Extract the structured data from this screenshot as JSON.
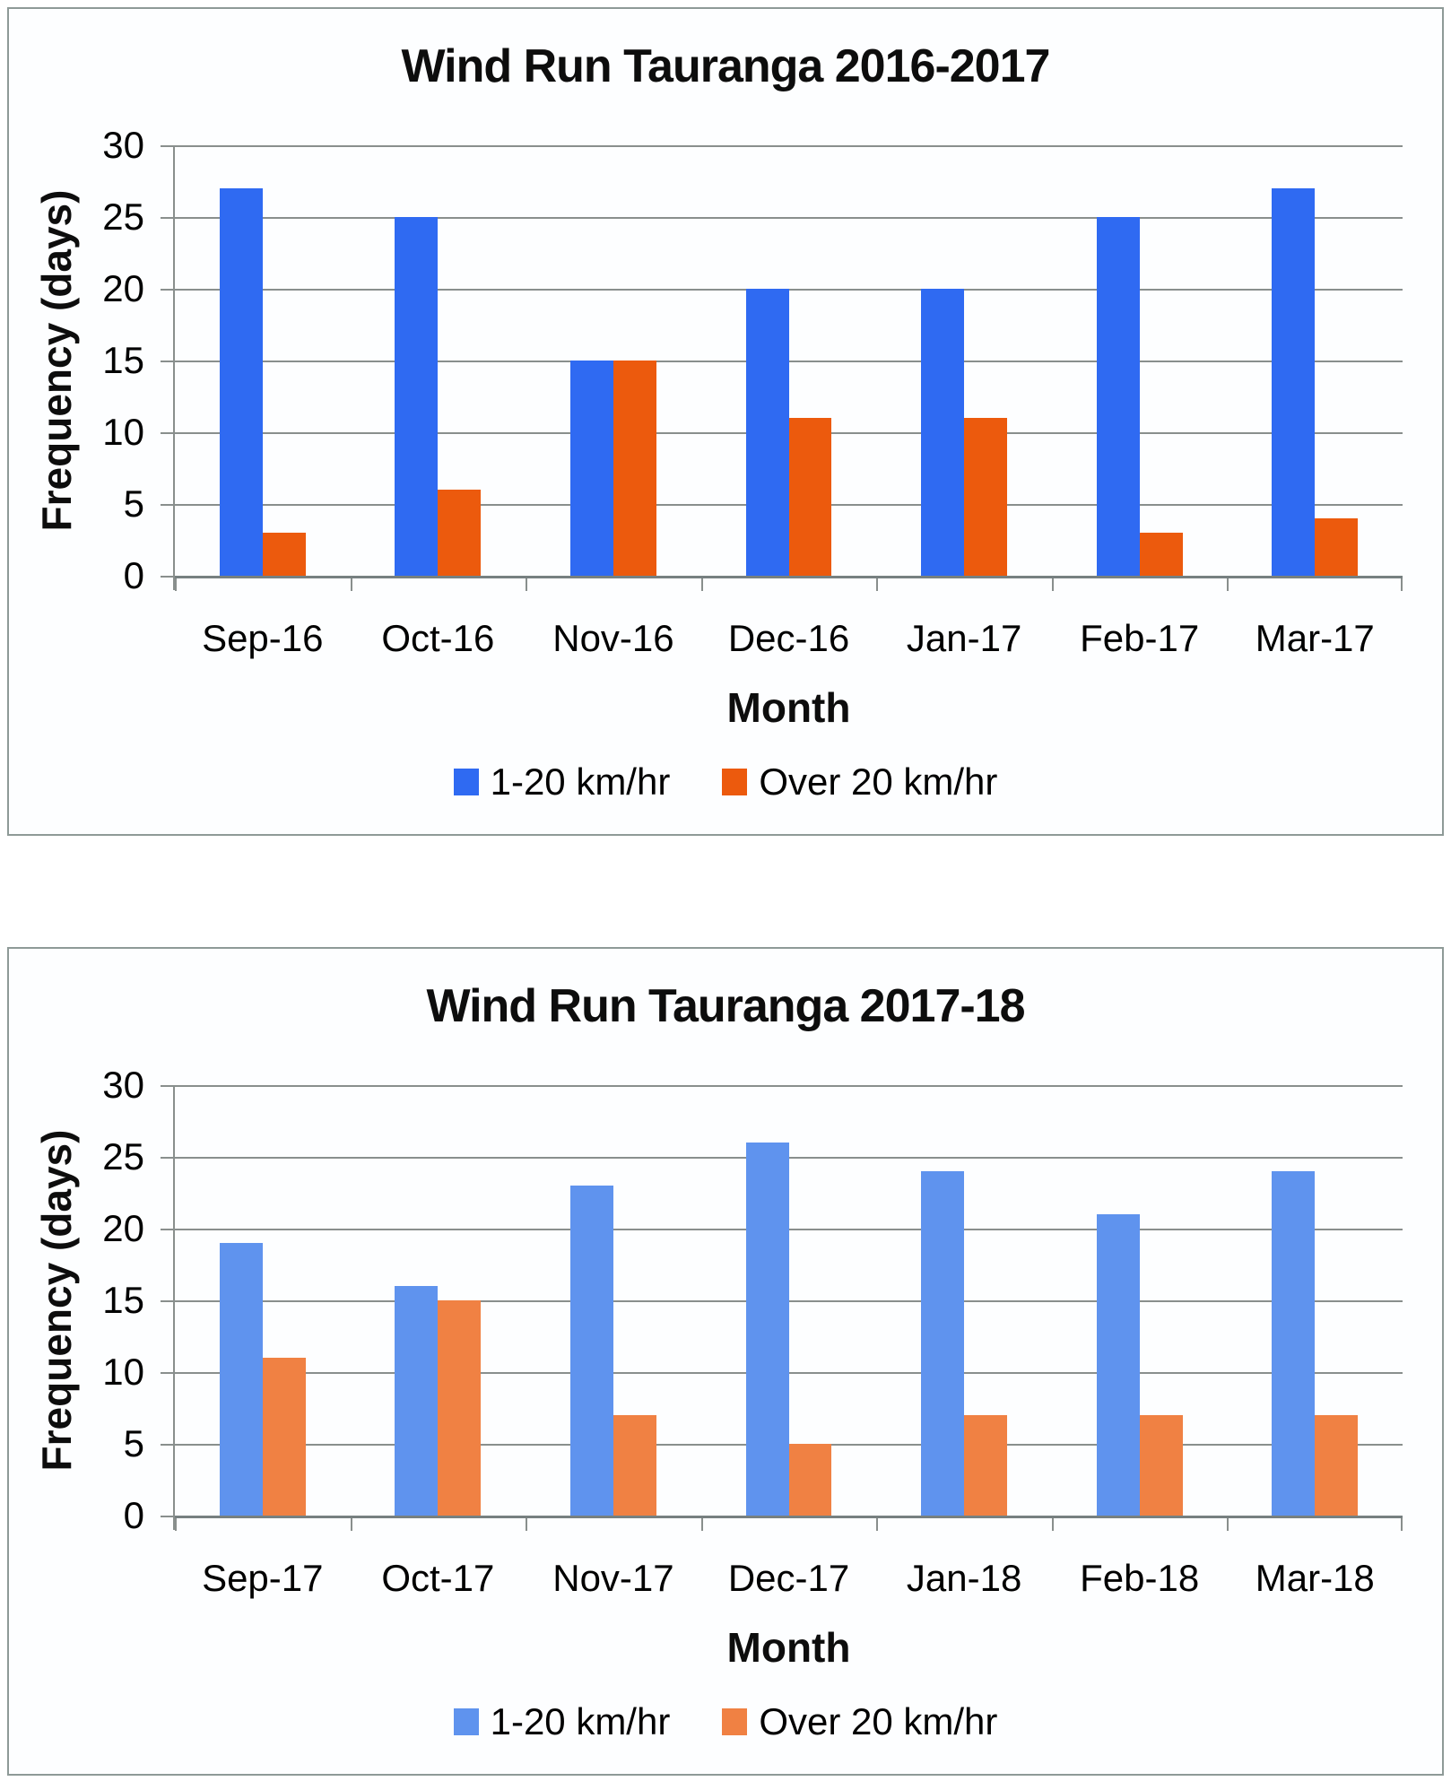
{
  "chart_data": [
    {
      "type": "bar",
      "title": "Wind Run Tauranga 2016-2017",
      "xlabel": "Month",
      "ylabel": "Frequency (days)",
      "ylim": [
        0,
        30
      ],
      "yticks": [
        0,
        5,
        10,
        15,
        20,
        25,
        30
      ],
      "grid": true,
      "legend_position": "bottom",
      "categories": [
        "Sep-16",
        "Oct-16",
        "Nov-16",
        "Dec-16",
        "Jan-17",
        "Feb-17",
        "Mar-17"
      ],
      "series": [
        {
          "name": "1-20 km/hr",
          "color": "#2f6af2",
          "values": [
            27,
            25,
            15,
            20,
            20,
            25,
            27
          ]
        },
        {
          "name": "Over 20 km/hr",
          "color": "#ec5a0d",
          "values": [
            3,
            6,
            15,
            11,
            11,
            3,
            4
          ]
        }
      ]
    },
    {
      "type": "bar",
      "title": "Wind Run Tauranga 2017-18",
      "xlabel": "Month",
      "ylabel": "Frequency (days)",
      "ylim": [
        0,
        30
      ],
      "yticks": [
        0,
        5,
        10,
        15,
        20,
        25,
        30
      ],
      "grid": true,
      "legend_position": "bottom",
      "categories": [
        "Sep-17",
        "Oct-17",
        "Nov-17",
        "Dec-17",
        "Jan-18",
        "Feb-18",
        "Mar-18"
      ],
      "series": [
        {
          "name": "1-20 km/hr",
          "color": "#5f93ee",
          "values": [
            19,
            16,
            23,
            26,
            24,
            21,
            24
          ]
        },
        {
          "name": "Over 20 km/hr",
          "color": "#f08143",
          "values": [
            11,
            15,
            7,
            5,
            7,
            7,
            7
          ]
        }
      ]
    }
  ]
}
